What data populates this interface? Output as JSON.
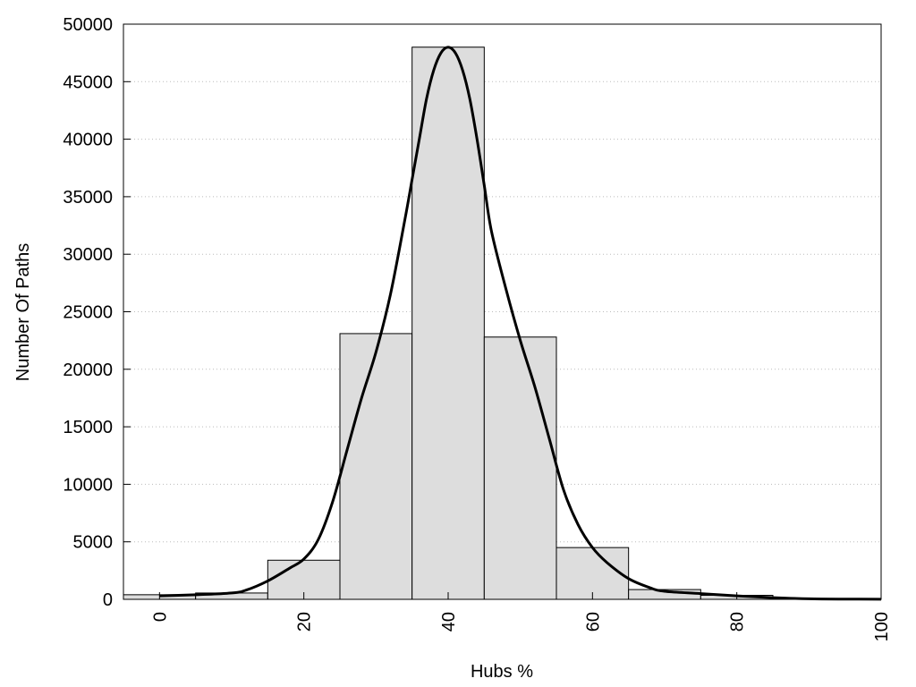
{
  "chart_data": {
    "type": "bar",
    "xlabel": "Hubs %",
    "ylabel": "Number Of Paths",
    "xlim": [
      -5,
      100
    ],
    "ylim": [
      0,
      50000
    ],
    "x_ticks": [
      0,
      20,
      40,
      60,
      80,
      100
    ],
    "y_ticks": [
      0,
      5000,
      10000,
      15000,
      20000,
      25000,
      30000,
      35000,
      40000,
      45000,
      50000
    ],
    "grid": "horizontal-dotted",
    "bar_fill": "#dddddd",
    "bar_stroke": "#000000",
    "line_color": "#000000",
    "bins": [
      {
        "x0": -5,
        "x1": 5,
        "value": 400
      },
      {
        "x0": 5,
        "x1": 15,
        "value": 550
      },
      {
        "x0": 15,
        "x1": 25,
        "value": 3400
      },
      {
        "x0": 25,
        "x1": 35,
        "value": 23100
      },
      {
        "x0": 35,
        "x1": 45,
        "value": 48000
      },
      {
        "x0": 45,
        "x1": 55,
        "value": 22800
      },
      {
        "x0": 55,
        "x1": 65,
        "value": 4500
      },
      {
        "x0": 65,
        "x1": 75,
        "value": 850
      },
      {
        "x0": 75,
        "x1": 85,
        "value": 350
      },
      {
        "x0": 85,
        "x1": 95,
        "value": 60
      },
      {
        "x0": 95,
        "x1": 100,
        "value": 20
      }
    ],
    "curve": {
      "x": [
        0,
        5,
        10,
        12,
        15,
        18,
        20,
        22,
        24,
        26,
        28,
        30,
        32,
        34,
        35,
        36,
        37,
        38,
        39,
        40,
        41,
        42,
        43,
        44,
        45,
        46,
        48,
        50,
        52,
        54,
        56,
        58,
        60,
        62,
        65,
        68,
        70,
        75,
        80,
        85,
        90,
        95,
        100
      ],
      "y": [
        300,
        400,
        550,
        800,
        1600,
        2700,
        3500,
        5200,
        8500,
        13000,
        17500,
        21500,
        26500,
        33000,
        36500,
        40000,
        43500,
        46000,
        47500,
        48000,
        47500,
        46000,
        43500,
        40000,
        36000,
        32000,
        27000,
        22500,
        18500,
        14000,
        9500,
        6500,
        4500,
        3200,
        1800,
        1000,
        700,
        500,
        300,
        150,
        50,
        20,
        10
      ]
    }
  }
}
